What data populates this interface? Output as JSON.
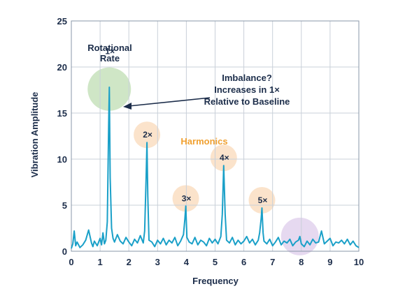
{
  "chart_data": {
    "type": "line",
    "xlabel": "Frequency",
    "ylabel": "Vibration Amplitude",
    "xlim": [
      0,
      10
    ],
    "ylim": [
      0,
      25
    ],
    "x_ticks": [
      "0",
      "1",
      "2",
      "3",
      "4",
      "5",
      "6",
      "7",
      "8",
      "9",
      "10"
    ],
    "y_ticks": [
      "0",
      "5",
      "10",
      "15",
      "20",
      "25"
    ],
    "grid": true,
    "line_color": "#1aa0c8",
    "peaks": [
      {
        "label": "1×",
        "x": 1.32,
        "y": 17.8,
        "circle_color": "#cfe6c6"
      },
      {
        "label": "2×",
        "x": 2.63,
        "y": 11.8,
        "circle_color": "#fbe3cb"
      },
      {
        "label": "3×",
        "x": 3.98,
        "y": 4.9,
        "circle_color": "#fbe3cb"
      },
      {
        "label": "4×",
        "x": 5.3,
        "y": 9.3,
        "circle_color": "#fbe3cb"
      },
      {
        "label": "5×",
        "x": 6.63,
        "y": 4.7,
        "circle_color": "#fbe3cb"
      }
    ],
    "extra_highlight": {
      "x": 7.95,
      "y": 1.6,
      "circle_color": "#e6d9f0"
    },
    "annotations": {
      "rotational_rate": [
        "Rotational",
        "Rate"
      ],
      "imbalance": [
        "Imbalance?",
        "Increases in 1×",
        "Relative to Baseline"
      ],
      "harmonics": "Harmonics",
      "harmonics_color": "#f0a030"
    },
    "series": [
      {
        "x": [
          0,
          0.05,
          0.1,
          0.15,
          0.2,
          0.3,
          0.4,
          0.5,
          0.6,
          0.7,
          0.75,
          0.8,
          0.9,
          1.0,
          1.05,
          1.1,
          1.15,
          1.2,
          1.25,
          1.3,
          1.32,
          1.35,
          1.4,
          1.45,
          1.5,
          1.6,
          1.7,
          1.8,
          1.9,
          2.0,
          2.1,
          2.2,
          2.3,
          2.4,
          2.5,
          2.55,
          2.6,
          2.63,
          2.66,
          2.7,
          2.8,
          2.9,
          3.0,
          3.1,
          3.2,
          3.3,
          3.4,
          3.5,
          3.6,
          3.7,
          3.8,
          3.9,
          3.95,
          3.98,
          4.02,
          4.1,
          4.2,
          4.3,
          4.4,
          4.5,
          4.6,
          4.7,
          4.8,
          4.9,
          5.0,
          5.1,
          5.2,
          5.25,
          5.3,
          5.35,
          5.4,
          5.5,
          5.6,
          5.7,
          5.8,
          5.9,
          6.0,
          6.1,
          6.2,
          6.3,
          6.4,
          6.5,
          6.55,
          6.6,
          6.63,
          6.67,
          6.7,
          6.8,
          6.9,
          7.0,
          7.1,
          7.2,
          7.3,
          7.4,
          7.5,
          7.6,
          7.7,
          7.8,
          7.9,
          7.95,
          8.0,
          8.1,
          8.2,
          8.3,
          8.4,
          8.5,
          8.6,
          8.7,
          8.8,
          8.9,
          9.0,
          9.1,
          9.2,
          9.3,
          9.4,
          9.5,
          9.6,
          9.7,
          9.8,
          9.9,
          10.0
        ],
        "y": [
          0.3,
          0.8,
          2.2,
          0.6,
          1.0,
          0.4,
          0.7,
          1.2,
          2.3,
          0.9,
          0.5,
          1.1,
          0.6,
          1.4,
          0.7,
          2.0,
          0.8,
          1.2,
          3.2,
          14.0,
          17.8,
          8.0,
          2.5,
          1.4,
          1.0,
          1.8,
          1.1,
          0.8,
          1.5,
          1.0,
          0.6,
          1.3,
          0.9,
          1.7,
          0.9,
          2.2,
          8.0,
          11.8,
          6.0,
          1.2,
          1.0,
          0.5,
          1.2,
          0.8,
          1.4,
          0.7,
          1.2,
          0.9,
          1.5,
          0.6,
          1.1,
          1.8,
          3.5,
          4.9,
          1.5,
          1.0,
          0.8,
          1.5,
          0.7,
          1.2,
          1.0,
          0.6,
          1.4,
          0.9,
          1.3,
          0.8,
          1.6,
          4.0,
          9.3,
          4.0,
          1.2,
          0.9,
          1.5,
          0.7,
          1.2,
          0.8,
          1.1,
          1.6,
          0.9,
          1.3,
          0.7,
          1.2,
          2.0,
          3.5,
          4.7,
          2.0,
          1.1,
          0.8,
          1.3,
          0.6,
          1.0,
          1.5,
          0.7,
          1.1,
          0.9,
          1.3,
          0.6,
          1.0,
          1.2,
          1.6,
          0.8,
          0.5,
          1.1,
          0.7,
          1.3,
          0.9,
          1.0,
          2.2,
          0.8,
          1.1,
          1.4,
          0.6,
          1.0,
          0.9,
          1.2,
          0.8,
          1.3,
          0.7,
          1.1,
          0.6,
          0.4
        ]
      }
    ]
  }
}
